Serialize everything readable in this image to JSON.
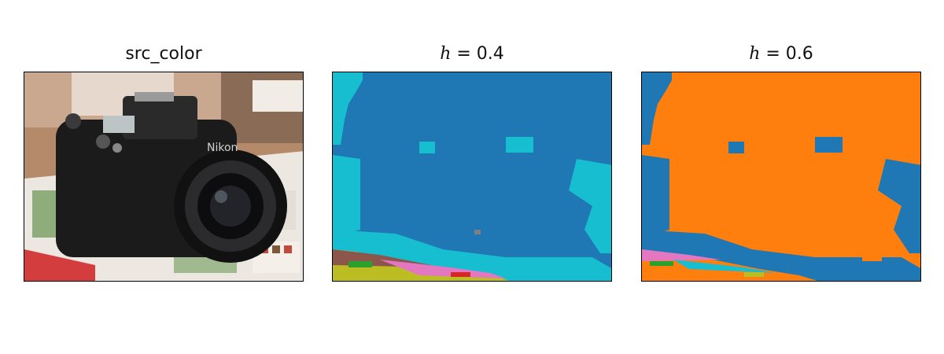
{
  "panels": [
    {
      "title": "src_color",
      "h_value": ""
    },
    {
      "title": "",
      "h_prefix": "h",
      "h_value": " = 0.4"
    },
    {
      "title": "",
      "h_prefix": "h",
      "h_value": " = 0.6"
    }
  ],
  "colors": {
    "blue": "#1f77b4",
    "cyan": "#17becf",
    "orange": "#ff7f0e",
    "pink": "#e377c2",
    "green": "#2ca02c",
    "olive": "#bcbd22",
    "brown": "#8c564b",
    "gray": "#7f7f7f",
    "red": "#d62728"
  }
}
